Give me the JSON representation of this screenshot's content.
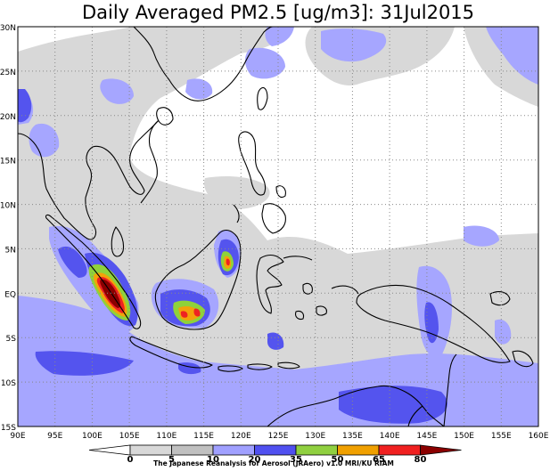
{
  "title": "Daily Averaged PM2.5 [ug/m3]: 31Jul2015",
  "credit": "The Japanese Reanalysis for Aerosol (JRAero) v1.0 MRI/KU RIAM",
  "map": {
    "lon_range": [
      90,
      160
    ],
    "lat_range": [
      -15,
      30
    ],
    "lon_ticks": [
      {
        "value": 90,
        "label": "90E"
      },
      {
        "value": 95,
        "label": "95E"
      },
      {
        "value": 100,
        "label": "100E"
      },
      {
        "value": 105,
        "label": "105E"
      },
      {
        "value": 110,
        "label": "110E"
      },
      {
        "value": 115,
        "label": "115E"
      },
      {
        "value": 120,
        "label": "120E"
      },
      {
        "value": 125,
        "label": "125E"
      },
      {
        "value": 130,
        "label": "130E"
      },
      {
        "value": 135,
        "label": "135E"
      },
      {
        "value": 140,
        "label": "140E"
      },
      {
        "value": 145,
        "label": "145E"
      },
      {
        "value": 150,
        "label": "150E"
      },
      {
        "value": 155,
        "label": "155E"
      },
      {
        "value": 160,
        "label": "160E"
      }
    ],
    "lat_ticks": [
      {
        "value": 30,
        "label": "30N"
      },
      {
        "value": 25,
        "label": "25N"
      },
      {
        "value": 20,
        "label": "20N"
      },
      {
        "value": 15,
        "label": "15N"
      },
      {
        "value": 10,
        "label": "10N"
      },
      {
        "value": 5,
        "label": "5N"
      },
      {
        "value": 0,
        "label": "EQ"
      },
      {
        "value": -5,
        "label": "5S"
      },
      {
        "value": -10,
        "label": "10S"
      },
      {
        "value": -15,
        "label": "15S"
      }
    ],
    "grid": "dotted"
  },
  "colorbar": {
    "levels": [
      "0",
      "5",
      "10",
      "20",
      "35",
      "50",
      "65",
      "80"
    ],
    "colors": [
      "#ffffff",
      "#d8d8d8",
      "#c0c0c0",
      "#a0a0ff",
      "#5050f0",
      "#90d040",
      "#f0a000",
      "#f02020",
      "#8b0000"
    ]
  },
  "colors": {
    "level_5_10": "#d8d8d8",
    "level_10_20": "#a6a6ff",
    "level_20_35": "#5454ee",
    "level_35_50": "#8fd23a",
    "level_50_65": "#f3a20a",
    "level_65_80": "#ee2222",
    "level_80_plus": "#8a0000",
    "coastline": "#000000"
  }
}
